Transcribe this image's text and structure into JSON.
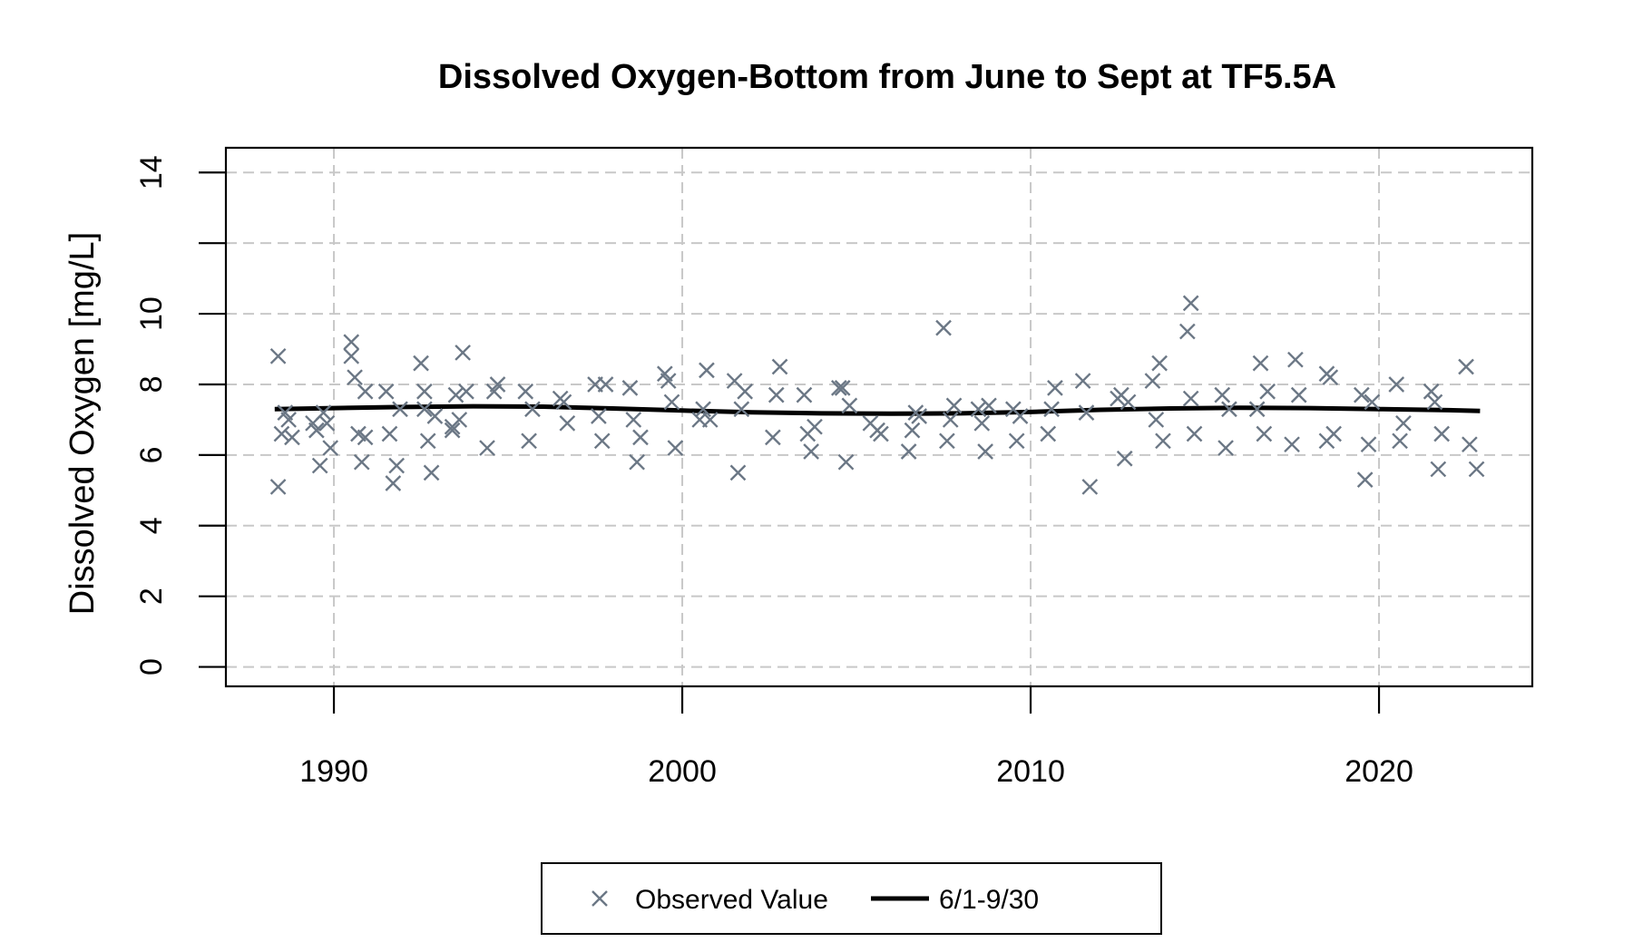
{
  "chart_data": {
    "type": "scatter",
    "title": "Dissolved Oxygen-Bottom from June to Sept at TF5.5A",
    "xlabel": "",
    "ylabel": "Dissolved Oxygen [mg/L]",
    "xlim": [
      1986.9,
      2024.4
    ],
    "ylim": [
      -0.55,
      14.7
    ],
    "x_ticks": [
      1990,
      2000,
      2010,
      2020
    ],
    "y_ticks": [
      0,
      2,
      4,
      6,
      8,
      10,
      12,
      14
    ],
    "y_tick_labels": [
      "0",
      "2",
      "4",
      "6",
      "8",
      "10",
      "",
      "14"
    ],
    "grid": true,
    "legend_position": "bottom",
    "colors": {
      "observed": "#6b7785",
      "trend": "#000000",
      "grid": "#c8c8c8"
    },
    "series": [
      {
        "name": "Observed Value",
        "kind": "points",
        "marker": "x",
        "points": [
          [
            1988.4,
            8.8
          ],
          [
            1988.4,
            5.1
          ],
          [
            1988.5,
            6.6
          ],
          [
            1988.6,
            7.2
          ],
          [
            1988.7,
            7.0
          ],
          [
            1988.8,
            6.5
          ],
          [
            1989.4,
            6.9
          ],
          [
            1989.5,
            6.7
          ],
          [
            1989.6,
            5.7
          ],
          [
            1989.7,
            7.2
          ],
          [
            1989.8,
            6.9
          ],
          [
            1989.9,
            6.2
          ],
          [
            1990.5,
            9.2
          ],
          [
            1990.5,
            8.8
          ],
          [
            1990.6,
            8.2
          ],
          [
            1990.7,
            6.6
          ],
          [
            1990.8,
            5.8
          ],
          [
            1990.9,
            6.5
          ],
          [
            1990.9,
            7.8
          ],
          [
            1991.5,
            7.8
          ],
          [
            1991.6,
            6.6
          ],
          [
            1991.7,
            5.2
          ],
          [
            1991.8,
            5.7
          ],
          [
            1991.9,
            7.3
          ],
          [
            1992.5,
            8.6
          ],
          [
            1992.6,
            7.8
          ],
          [
            1992.6,
            7.3
          ],
          [
            1992.7,
            6.4
          ],
          [
            1992.8,
            5.5
          ],
          [
            1992.9,
            7.1
          ],
          [
            1993.4,
            6.8
          ],
          [
            1993.4,
            6.7
          ],
          [
            1993.5,
            7.7
          ],
          [
            1993.6,
            7.0
          ],
          [
            1993.7,
            8.9
          ],
          [
            1993.8,
            7.8
          ],
          [
            1994.4,
            6.2
          ],
          [
            1994.6,
            7.8
          ],
          [
            1994.7,
            8.0
          ],
          [
            1995.5,
            7.8
          ],
          [
            1995.6,
            6.4
          ],
          [
            1995.7,
            7.3
          ],
          [
            1996.5,
            7.6
          ],
          [
            1996.6,
            7.5
          ],
          [
            1996.7,
            6.9
          ],
          [
            1997.5,
            8.0
          ],
          [
            1997.6,
            7.1
          ],
          [
            1997.7,
            6.4
          ],
          [
            1997.8,
            8.0
          ],
          [
            1998.5,
            7.9
          ],
          [
            1998.6,
            7.0
          ],
          [
            1998.7,
            5.8
          ],
          [
            1998.8,
            6.5
          ],
          [
            1999.5,
            8.3
          ],
          [
            1999.6,
            8.1
          ],
          [
            1999.7,
            7.5
          ],
          [
            1999.8,
            6.2
          ],
          [
            2000.5,
            7.0
          ],
          [
            2000.6,
            7.3
          ],
          [
            2000.7,
            8.4
          ],
          [
            2000.8,
            7.0
          ],
          [
            2001.5,
            8.1
          ],
          [
            2001.6,
            5.5
          ],
          [
            2001.7,
            7.3
          ],
          [
            2001.8,
            7.8
          ],
          [
            2002.6,
            6.5
          ],
          [
            2002.7,
            7.7
          ],
          [
            2002.8,
            8.5
          ],
          [
            2003.5,
            7.7
          ],
          [
            2003.6,
            6.6
          ],
          [
            2003.7,
            6.1
          ],
          [
            2003.8,
            6.8
          ],
          [
            2004.5,
            7.9
          ],
          [
            2004.6,
            7.9
          ],
          [
            2004.7,
            5.8
          ],
          [
            2004.8,
            7.4
          ],
          [
            2005.4,
            6.9
          ],
          [
            2005.6,
            6.7
          ],
          [
            2005.7,
            6.6
          ],
          [
            2006.5,
            6.1
          ],
          [
            2006.6,
            6.7
          ],
          [
            2006.7,
            7.2
          ],
          [
            2006.8,
            7.1
          ],
          [
            2007.5,
            9.6
          ],
          [
            2007.6,
            6.4
          ],
          [
            2007.7,
            7.0
          ],
          [
            2007.8,
            7.4
          ],
          [
            2008.5,
            7.3
          ],
          [
            2008.6,
            6.9
          ],
          [
            2008.7,
            6.1
          ],
          [
            2008.8,
            7.4
          ],
          [
            2009.5,
            7.3
          ],
          [
            2009.6,
            6.4
          ],
          [
            2009.7,
            7.1
          ],
          [
            2010.5,
            6.6
          ],
          [
            2010.6,
            7.3
          ],
          [
            2010.7,
            7.9
          ],
          [
            2011.5,
            8.1
          ],
          [
            2011.6,
            7.2
          ],
          [
            2011.7,
            5.1
          ],
          [
            2012.5,
            7.6
          ],
          [
            2012.6,
            7.7
          ],
          [
            2012.7,
            5.9
          ],
          [
            2012.8,
            7.5
          ],
          [
            2013.5,
            8.1
          ],
          [
            2013.6,
            7.0
          ],
          [
            2013.7,
            8.6
          ],
          [
            2013.8,
            6.4
          ],
          [
            2014.5,
            9.5
          ],
          [
            2014.6,
            10.3
          ],
          [
            2014.6,
            7.6
          ],
          [
            2014.7,
            6.6
          ],
          [
            2015.5,
            7.7
          ],
          [
            2015.6,
            6.2
          ],
          [
            2015.7,
            7.3
          ],
          [
            2016.5,
            7.3
          ],
          [
            2016.6,
            8.6
          ],
          [
            2016.7,
            6.6
          ],
          [
            2016.8,
            7.8
          ],
          [
            2017.5,
            6.3
          ],
          [
            2017.6,
            8.7
          ],
          [
            2017.7,
            7.7
          ],
          [
            2018.5,
            6.4
          ],
          [
            2018.5,
            8.3
          ],
          [
            2018.6,
            8.2
          ],
          [
            2018.7,
            6.6
          ],
          [
            2019.5,
            7.7
          ],
          [
            2019.6,
            5.3
          ],
          [
            2019.7,
            6.3
          ],
          [
            2019.8,
            7.5
          ],
          [
            2020.5,
            8.0
          ],
          [
            2020.6,
            6.4
          ],
          [
            2020.7,
            6.9
          ],
          [
            2021.5,
            7.8
          ],
          [
            2021.6,
            7.5
          ],
          [
            2021.7,
            5.6
          ],
          [
            2021.8,
            6.6
          ],
          [
            2022.5,
            8.5
          ],
          [
            2022.6,
            6.3
          ],
          [
            2022.8,
            5.6
          ]
        ]
      },
      {
        "name": "6/1-9/30",
        "kind": "line",
        "points": [
          [
            1988.3,
            7.3
          ],
          [
            1990.0,
            7.33
          ],
          [
            1992.0,
            7.36
          ],
          [
            1994.0,
            7.38
          ],
          [
            1996.0,
            7.37
          ],
          [
            1998.0,
            7.32
          ],
          [
            2000.0,
            7.26
          ],
          [
            2002.0,
            7.21
          ],
          [
            2004.0,
            7.18
          ],
          [
            2006.0,
            7.17
          ],
          [
            2008.0,
            7.18
          ],
          [
            2010.0,
            7.22
          ],
          [
            2012.0,
            7.28
          ],
          [
            2014.0,
            7.32
          ],
          [
            2016.0,
            7.34
          ],
          [
            2018.0,
            7.33
          ],
          [
            2020.0,
            7.3
          ],
          [
            2022.0,
            7.27
          ],
          [
            2022.9,
            7.25
          ]
        ]
      }
    ]
  }
}
